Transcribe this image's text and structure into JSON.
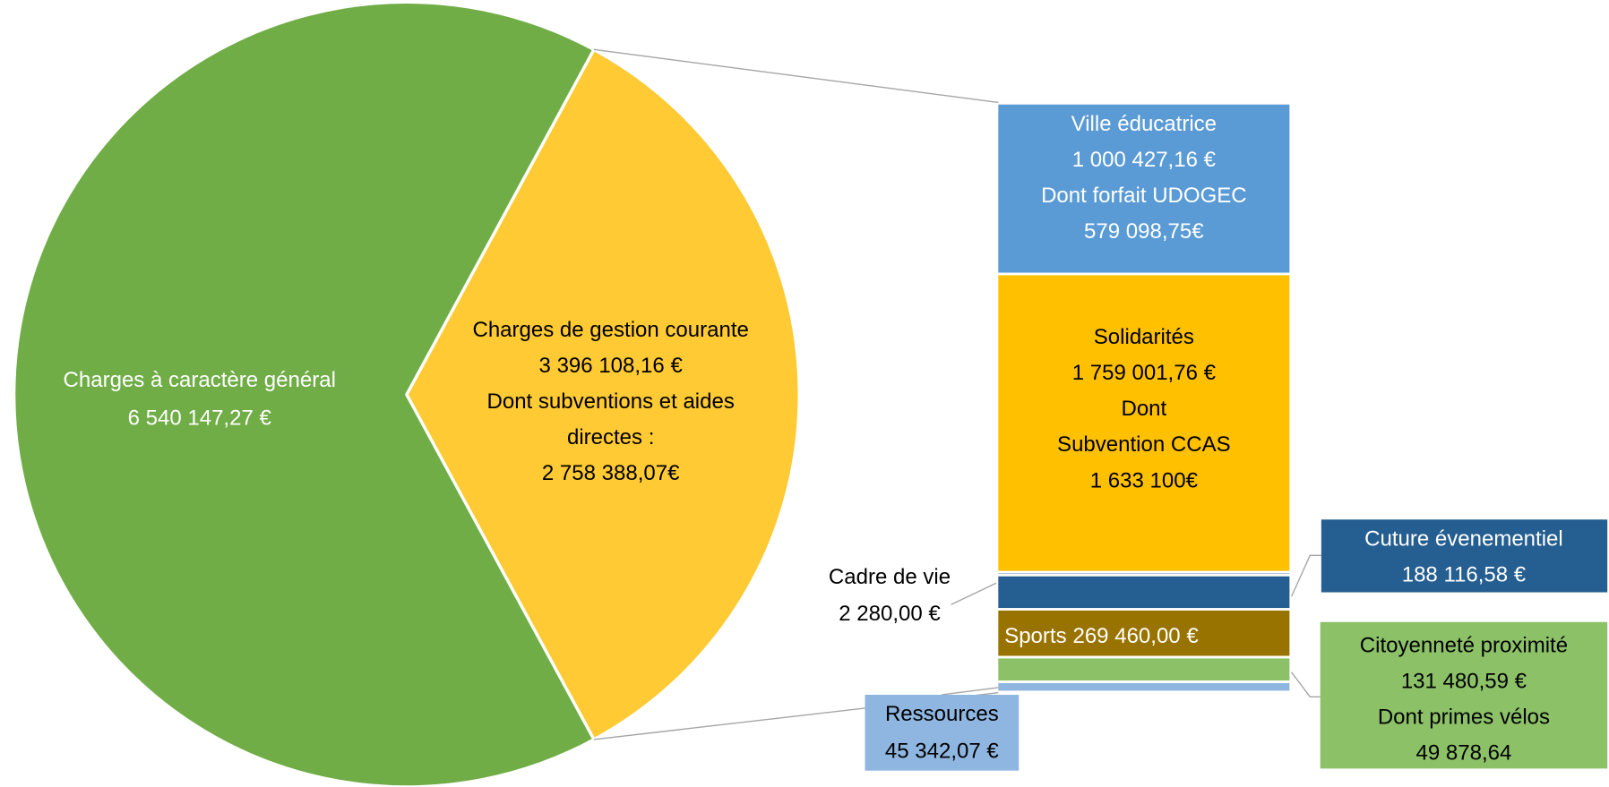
{
  "chart_data": {
    "type": "pie-of-bar",
    "pie": {
      "slices": [
        {
          "name": "Charges à caractère général",
          "value": 6540147.27,
          "value_label": "6 540 147,27 €",
          "color": "#70ad47"
        },
        {
          "name": "Charges de gestion courante",
          "value": 3396108.16,
          "value_label": "3 396 108,16 €",
          "color": "#ffca33",
          "notes": [
            "Dont subventions et aides",
            "directes :",
            "2 758 388,07€"
          ]
        }
      ]
    },
    "bar": {
      "segments": [
        {
          "name": "Ville éducatrice",
          "value": 1000427.16,
          "value_label": "1 000 427,16 €",
          "color": "#5b9bd5",
          "notes": [
            "Dont forfait UDOGEC",
            "579 098,75€"
          ]
        },
        {
          "name": "Solidarités",
          "value": 1759001.76,
          "value_label": "1 759 001,76 €",
          "color": "#ffc000",
          "notes": [
            "Dont",
            "Subvention CCAS",
            "1 633 100€"
          ]
        },
        {
          "name": "Cadre de vie",
          "value": 2280.0,
          "value_label": "2 280,00 €",
          "color": "#4472c4"
        },
        {
          "name": "Cuture évenementiel",
          "value": 188116.58,
          "value_label": "188 116,58 €",
          "color": "#255e91"
        },
        {
          "name": "Sports",
          "value": 269460.0,
          "value_label": "269 460,00 €",
          "color": "#997300"
        },
        {
          "name": "Citoyenneté proximité",
          "value": 131480.59,
          "value_label": "131 480,59 €",
          "color": "#8cc168",
          "notes": [
            "Dont primes vélos",
            "49 878,64"
          ]
        },
        {
          "name": "Ressources",
          "value": 45342.07,
          "value_label": "45 342,07 €",
          "color": "#8fb6e0"
        }
      ]
    }
  }
}
